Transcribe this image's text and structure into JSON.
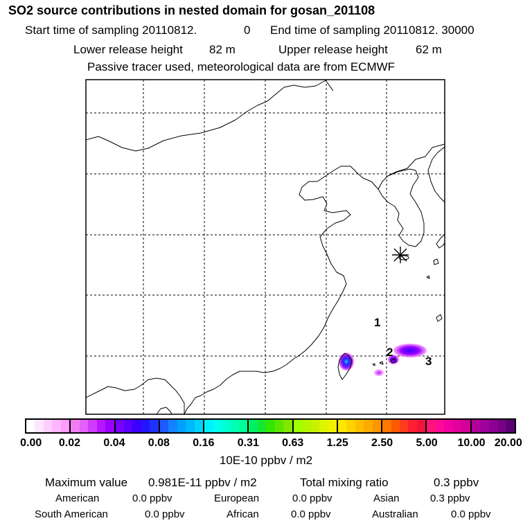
{
  "header": {
    "title": "SO2 source contributions in nested domain for gosan_201108",
    "start_label": "Start time of sampling 20110812.",
    "start_hour": "0",
    "end_label": "End time of sampling 20110812. 30000",
    "lower_label": "Lower release height",
    "lower_value": "82 m",
    "upper_label": "Upper release height",
    "upper_value": "62 m",
    "tracer_note": "Passive tracer used, meteorological data are from ECMWF"
  },
  "map": {
    "station_marker": "asterisk-icon",
    "source_labels": [
      "1",
      "2",
      "3"
    ]
  },
  "colorbar": {
    "ticks": [
      "0.00",
      "0.02",
      "0.04",
      "0.08",
      "0.16",
      "0.31",
      "0.63",
      "1.25",
      "2.50",
      "5.00",
      "10.00",
      "20.00"
    ],
    "unit": "10E-10 ppbv / m2",
    "segments": [
      [
        "#ffffff",
        "#ffe6ff",
        "#ffcdff",
        "#ffb4ff",
        "#ff9bff"
      ],
      [
        "#f27df2",
        "#e361ff",
        "#d03cff",
        "#b814ff",
        "#9900ff"
      ],
      [
        "#7800ff",
        "#5a00ff",
        "#3c00ff",
        "#2314ff",
        "#1e32ff"
      ],
      [
        "#1e5aff",
        "#1482ff",
        "#00a0ff",
        "#00b9ff",
        "#00d2ff"
      ],
      [
        "#00f0ff",
        "#00ffee",
        "#00ffd2",
        "#00ffb4",
        "#00ff96"
      ],
      [
        "#00f064",
        "#14e632",
        "#32e600",
        "#5ae600",
        "#82e600"
      ],
      [
        "#a0ff00",
        "#b4f500",
        "#c8f000",
        "#dcf500",
        "#f0f000"
      ],
      [
        "#ffe600",
        "#ffd200",
        "#ffbe00",
        "#ffaa00",
        "#ff9600"
      ],
      [
        "#ff7800",
        "#ff5a00",
        "#ff3c1e",
        "#ff1e32",
        "#f0143c"
      ],
      [
        "#ff1478",
        "#ff0a96",
        "#f000a0",
        "#e1009b",
        "#d20096"
      ],
      [
        "#b4009b",
        "#a0009b",
        "#8c0091",
        "#780087",
        "#5a0073"
      ]
    ]
  },
  "summary": {
    "max_label": "Maximum value",
    "max_value": "0.981E-11 ppbv / m2",
    "total_label": "Total mixing ratio",
    "total_value": "0.3 ppbv",
    "regions": [
      {
        "name": "American",
        "value": "0.0 ppbv"
      },
      {
        "name": "European",
        "value": "0.0 ppbv"
      },
      {
        "name": "Asian",
        "value": "0.3 ppbv"
      },
      {
        "name": "South American",
        "value": "0.0 ppbv"
      },
      {
        "name": "African",
        "value": "0.0 ppbv"
      },
      {
        "name": "Australian",
        "value": "0.0 ppbv"
      }
    ]
  }
}
